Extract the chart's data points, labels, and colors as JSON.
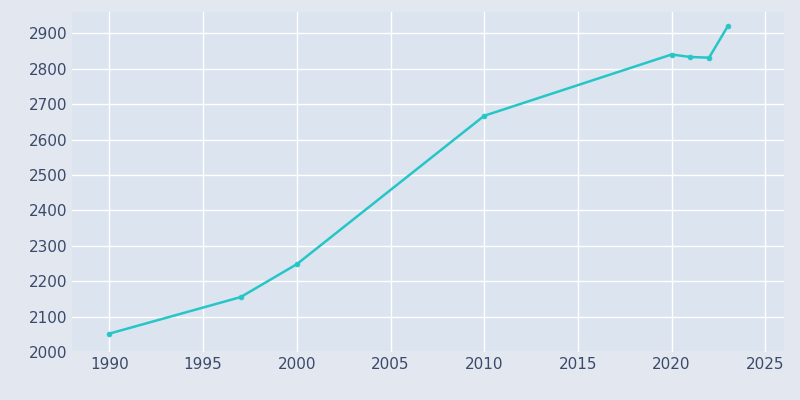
{
  "years": [
    1990,
    1997,
    2000,
    2010,
    2020,
    2021,
    2022,
    2023
  ],
  "population": [
    2052,
    2155,
    2248,
    2667,
    2840,
    2833,
    2831,
    2920
  ],
  "line_color": "#26c6c6",
  "marker_color": "#26c6c6",
  "background_color": "#e3e8f0",
  "plot_bg_color": "#dce4f0",
  "grid_color": "#ffffff",
  "tick_label_color": "#3a4a6b",
  "xlim": [
    1988,
    2026
  ],
  "ylim": [
    2000,
    2960
  ],
  "xticks": [
    1990,
    1995,
    2000,
    2005,
    2010,
    2015,
    2020,
    2025
  ],
  "yticks": [
    2000,
    2100,
    2200,
    2300,
    2400,
    2500,
    2600,
    2700,
    2800,
    2900
  ],
  "linewidth": 1.8,
  "markersize": 3.5,
  "tick_fontsize": 11
}
